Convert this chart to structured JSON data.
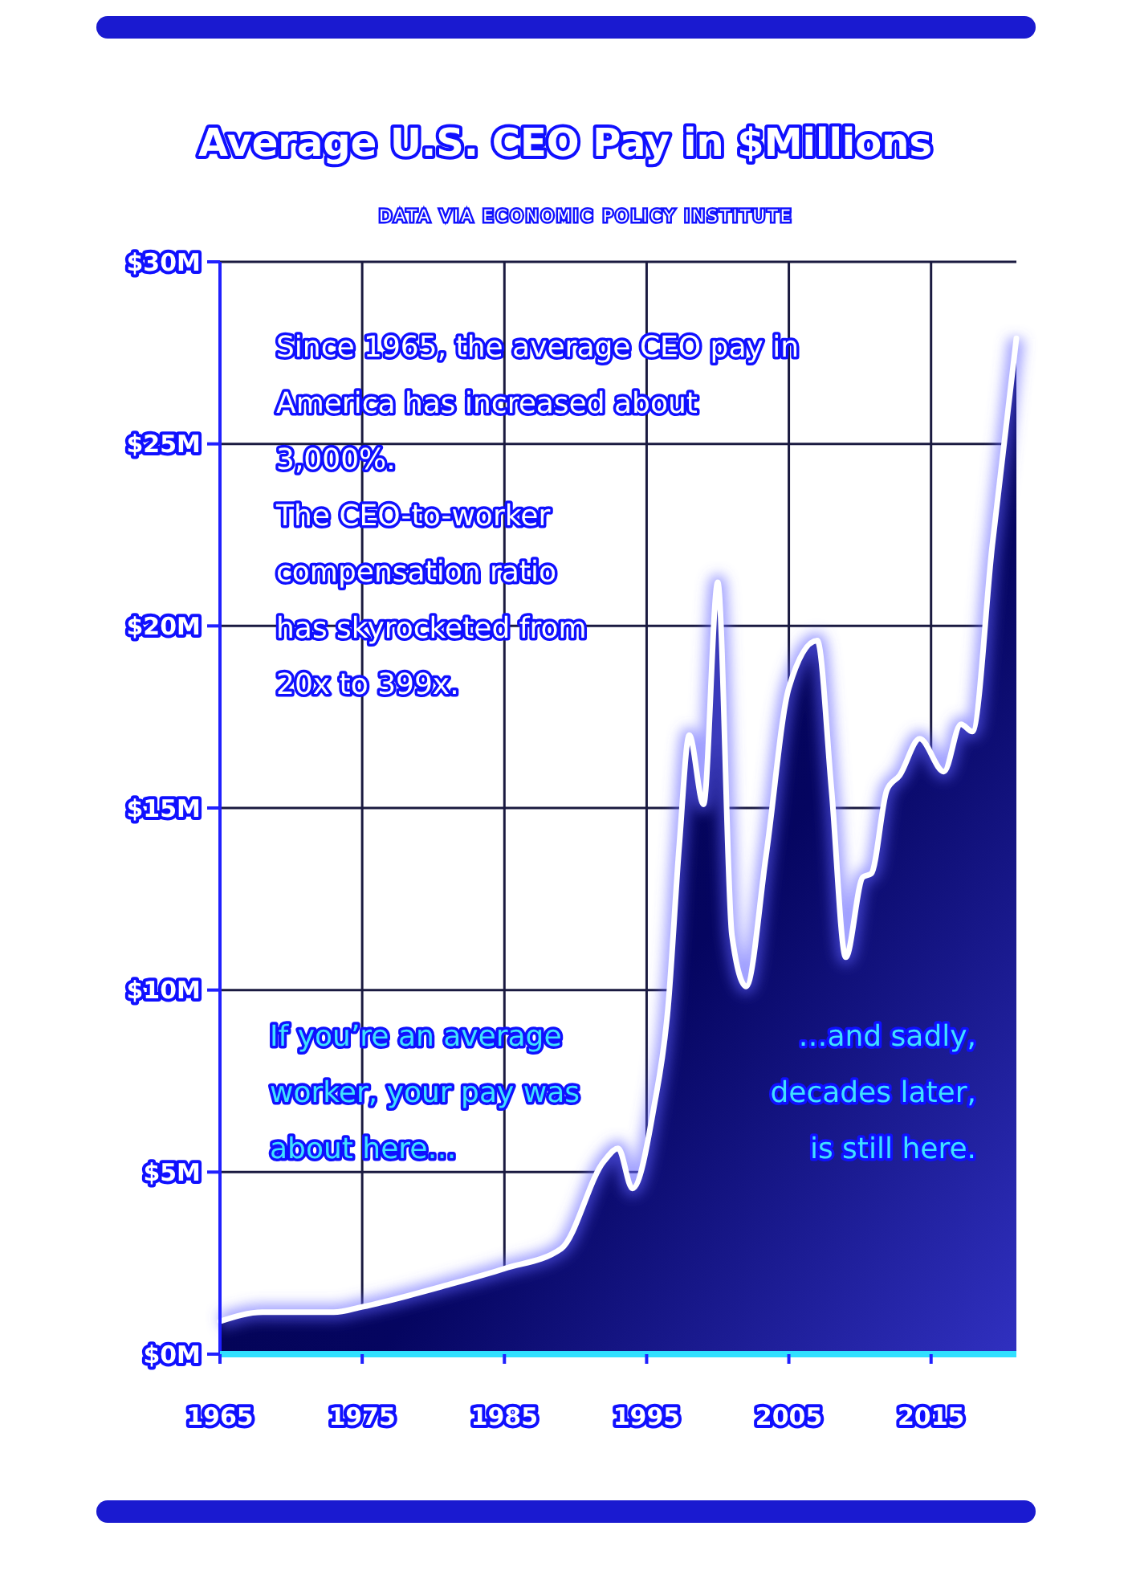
{
  "chart_data": {
    "type": "area",
    "title": "Average U.S. CEO Pay in $Millions",
    "subtitle": "DATA VIA ECONOMIC POLICY INSTITUTE",
    "x": [
      1965,
      1968,
      1973,
      1975,
      1981,
      1985,
      1989,
      1992,
      1993,
      1994,
      1995.5,
      1996.5,
      1997.3,
      1998,
      1999,
      2000,
      2001,
      2002,
      2003.4,
      2005,
      2007,
      2008,
      2009,
      2010.2,
      2010.8,
      2011.9,
      2012.8,
      2014.2,
      2015.9,
      2017.1,
      2017.9,
      2019.3,
      2021
    ],
    "series": [
      {
        "color": "#ffffff",
        "values": [
          0.9,
          1.15,
          1.15,
          1.3,
          1.9,
          2.35,
          2.9,
          5.3,
          5.65,
          4.55,
          6.75,
          9.5,
          14,
          17,
          15.1,
          21.2,
          11.5,
          10.1,
          13.7,
          18.3,
          19.6,
          15.5,
          10.9,
          13.1,
          13.2,
          15.5,
          15.9,
          16.9,
          16.0,
          17.3,
          17.1,
          22.2,
          27.9
        ]
      }
    ],
    "xlim": [
      1965,
      2021
    ],
    "ylim": [
      0,
      30
    ],
    "xticks": [
      1965,
      1975,
      1985,
      1995,
      2005,
      2015
    ],
    "yticks": [
      {
        "value": 0,
        "label": "$0M"
      },
      {
        "value": 5,
        "label": "$5M"
      },
      {
        "value": 10,
        "label": "$10M"
      },
      {
        "value": 15,
        "label": "$15M"
      },
      {
        "value": 20,
        "label": "$20M"
      },
      {
        "value": 25,
        "label": "$25M"
      },
      {
        "value": 30,
        "label": "$30M"
      }
    ],
    "grid": true,
    "annotations": [
      "Since 1965, the average CEO pay in America has increased about 3,000%.",
      "The CEO-to-worker compensation ratio has skyrocketed from 20x to 399x.",
      "If you’re an average worker, your pay was about here…",
      "…and sadly, decades later, is still here."
    ]
  }
}
